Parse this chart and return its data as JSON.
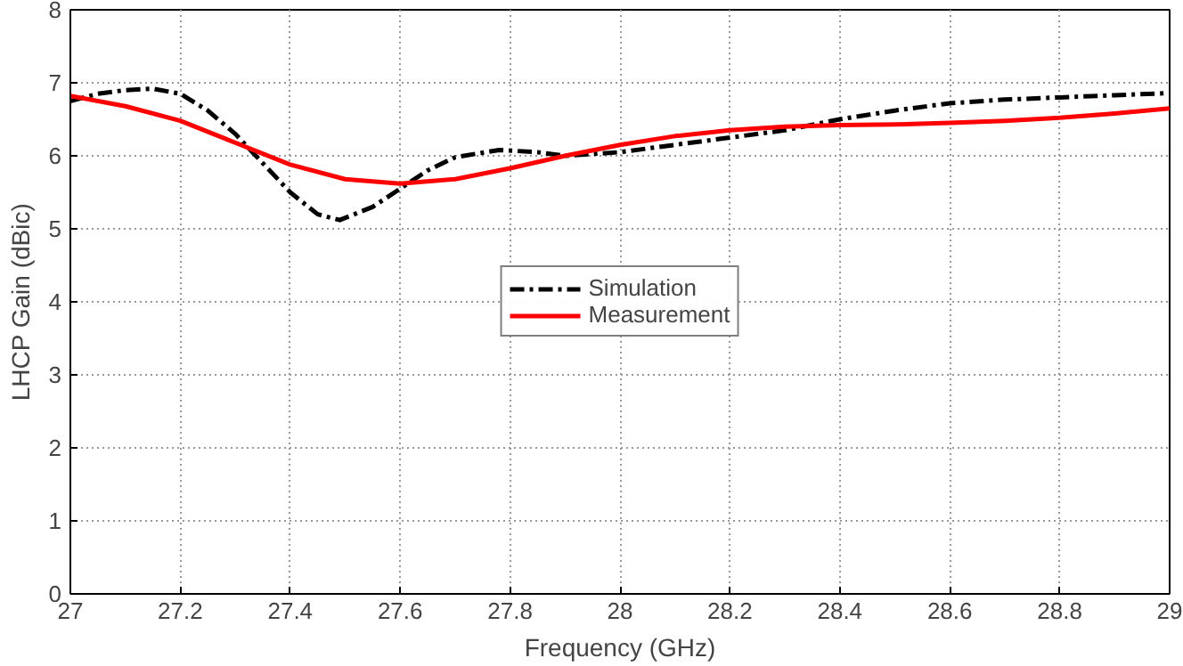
{
  "chart_data": {
    "type": "line",
    "xlabel": "Frequency (GHz)",
    "ylabel": "LHCP Gain (dBic)",
    "xlim": [
      27,
      29
    ],
    "ylim": [
      0,
      8
    ],
    "xticks": [
      27,
      27.2,
      27.4,
      27.6,
      27.8,
      28,
      28.2,
      28.4,
      28.6,
      28.8,
      29
    ],
    "yticks": [
      0,
      1,
      2,
      3,
      4,
      5,
      6,
      7,
      8
    ],
    "grid": true,
    "legend": "center",
    "marker": "none",
    "series": [
      {
        "name": "Simulation",
        "color": "#000000",
        "line_style": "dashdot",
        "x": [
          27,
          27.05,
          27.1,
          27.15,
          27.2,
          27.25,
          27.3,
          27.35,
          27.4,
          27.45,
          27.49,
          27.55,
          27.6,
          27.65,
          27.7,
          27.78,
          27.85,
          27.9,
          28,
          28.1,
          28.2,
          28.3,
          28.4,
          28.5,
          28.6,
          28.7,
          28.8,
          28.9,
          29
        ],
        "values": [
          6.75,
          6.85,
          6.9,
          6.92,
          6.85,
          6.62,
          6.3,
          5.9,
          5.5,
          5.2,
          5.12,
          5.3,
          5.55,
          5.8,
          5.98,
          6.08,
          6.05,
          6.0,
          6.05,
          6.15,
          6.25,
          6.35,
          6.5,
          6.62,
          6.72,
          6.77,
          6.8,
          6.83,
          6.86
        ]
      },
      {
        "name": "Measurement",
        "color": "#ff0000",
        "line_style": "solid",
        "x": [
          27,
          27.1,
          27.2,
          27.3,
          27.4,
          27.5,
          27.6,
          27.7,
          27.8,
          27.9,
          28,
          28.1,
          28.2,
          28.3,
          28.4,
          28.5,
          28.6,
          28.7,
          28.8,
          28.9,
          29
        ],
        "values": [
          6.82,
          6.68,
          6.48,
          6.18,
          5.88,
          5.68,
          5.62,
          5.68,
          5.83,
          6.0,
          6.15,
          6.27,
          6.35,
          6.4,
          6.42,
          6.43,
          6.45,
          6.48,
          6.52,
          6.58,
          6.65
        ]
      }
    ]
  }
}
